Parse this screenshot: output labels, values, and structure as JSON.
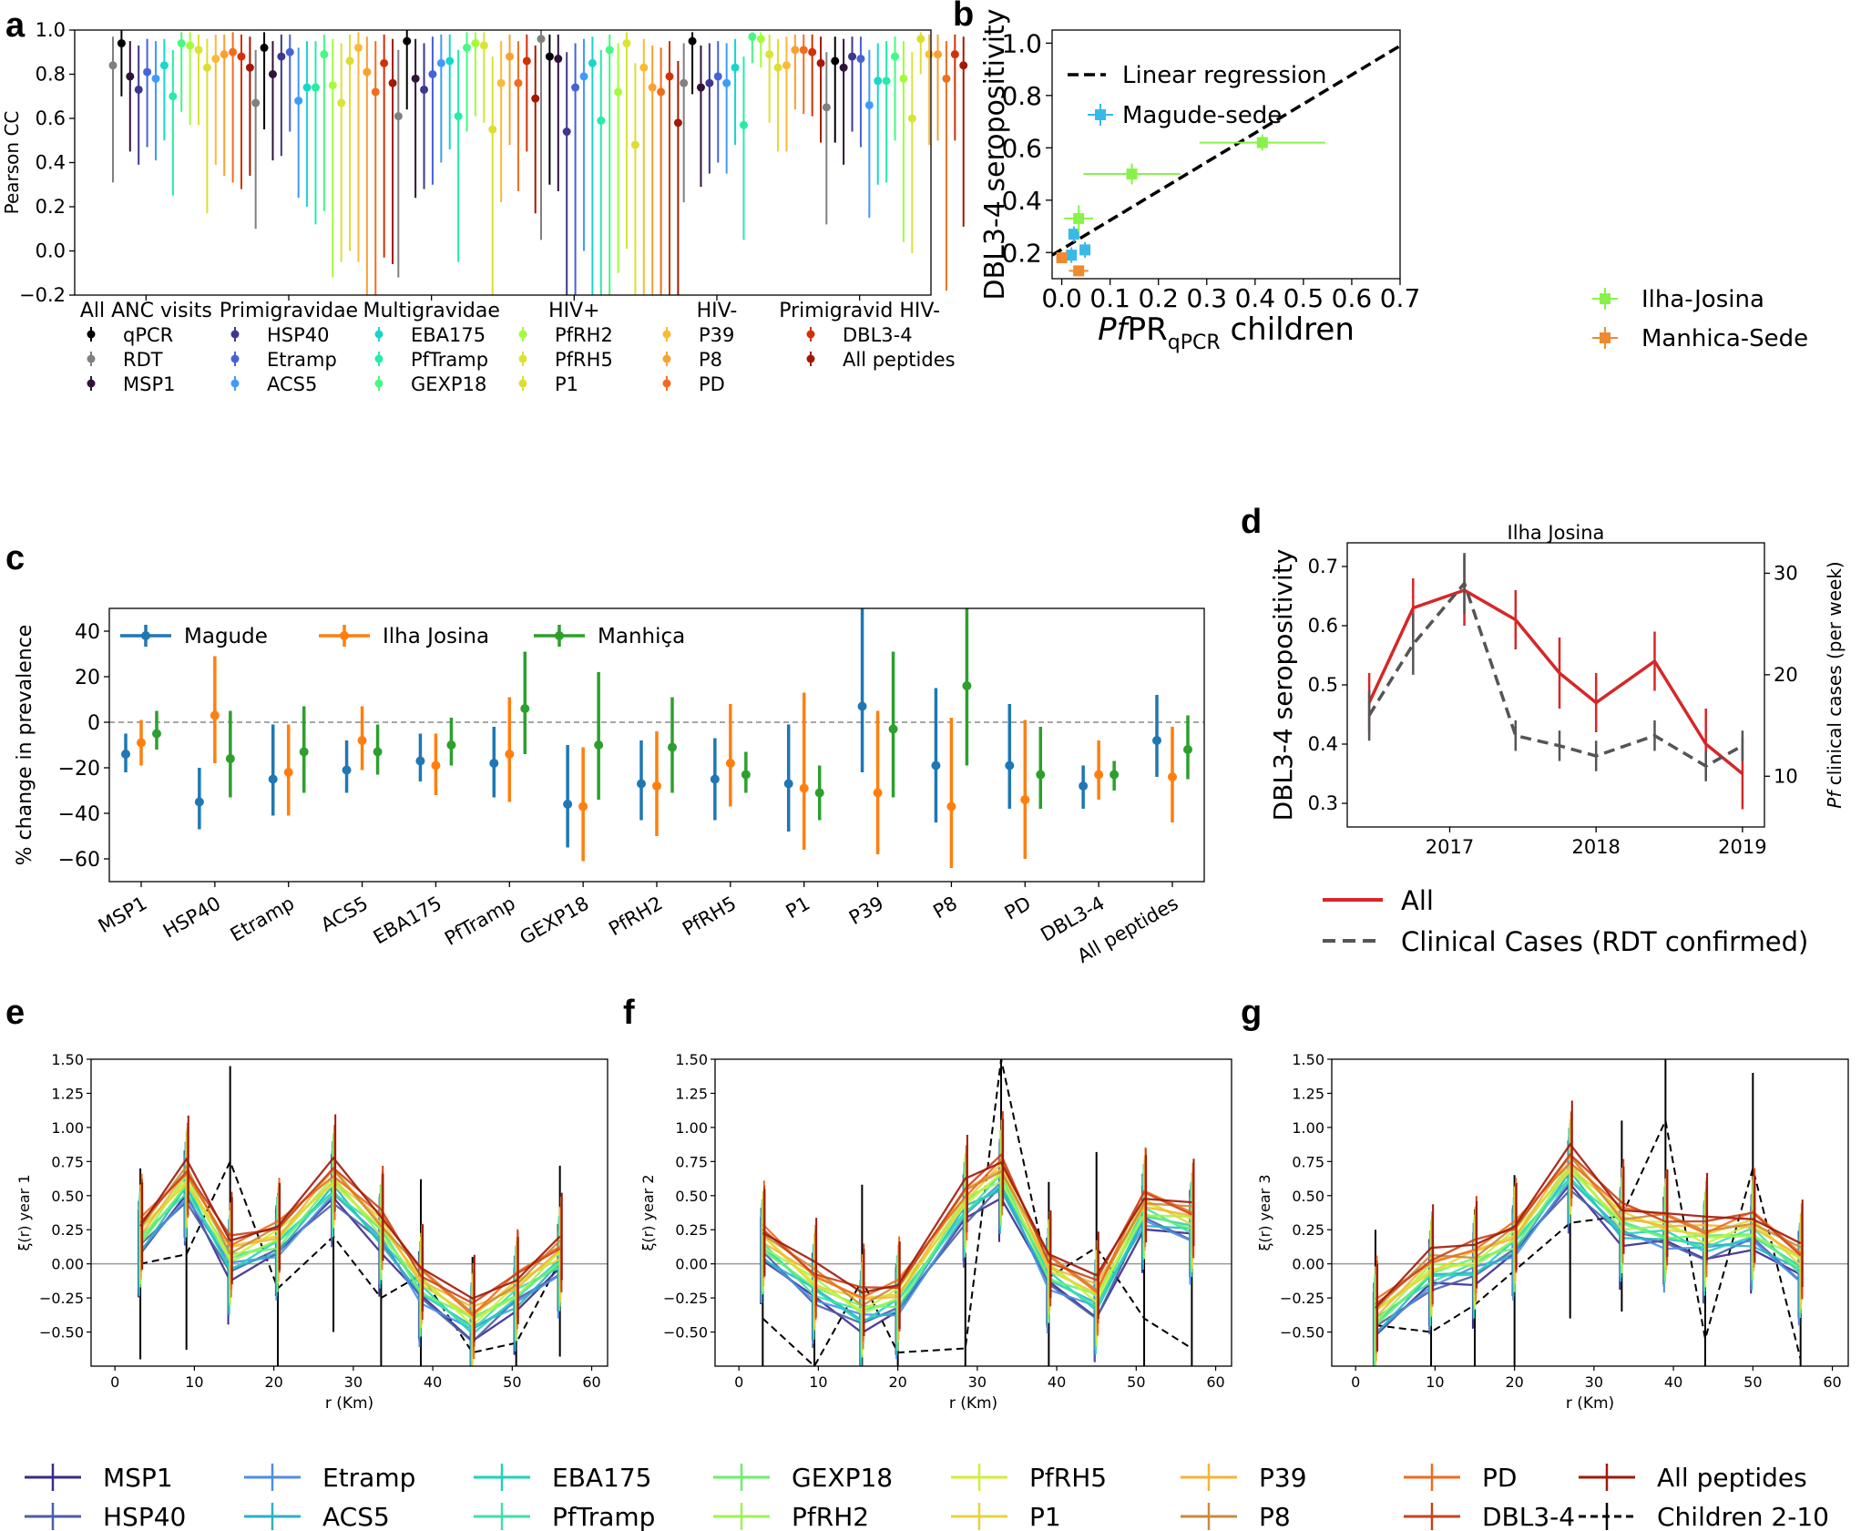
{
  "panel_labels": [
    "a",
    "b",
    "c",
    "d",
    "e",
    "f",
    "g"
  ],
  "colors": {
    "qPCR": "#000000",
    "RDT": "#808080",
    "MSP1": "#30123b",
    "HSP40": "#3e378f",
    "Etramp": "#4662d7",
    "ACS5": "#3e9bfe",
    "EBA175": "#18d6cb",
    "PfTramp": "#25eca7",
    "GEXP18": "#46f884",
    "PfRH2": "#a2fc3c",
    "PfRH5": "#dae337",
    "P1": "#dedd32",
    "P39": "#fbb938",
    "P8": "#f8a130",
    "PD": "#f26c1d",
    "DBL3-4": "#d23105",
    "All peptides": "#a31903",
    "Magude": "#1f77b4",
    "Ilha Josina": "#ff7f0e",
    "Manhica": "#2ca02c",
    "All_d": "#d62728",
    "Clinical_d": "#555555"
  },
  "chart_data": [
    {
      "panel": "a",
      "type": "scatter",
      "ylabel": "Pearson CC",
      "ylim": [
        -0.2,
        1.0
      ],
      "yticks": [
        "−0.2",
        "0.0",
        "0.2",
        "0.4",
        "0.6",
        "0.8",
        "1.0"
      ],
      "categories": [
        "All ANC visits",
        "Primigravidae",
        "Multigravidae",
        "HIV+",
        "HIV-",
        "Primigravid HIV-"
      ],
      "legend": [
        "qPCR",
        "RDT",
        "MSP1",
        "HSP40",
        "Etramp",
        "ACS5",
        "EBA175",
        "PfTramp",
        "GEXP18",
        "PfRH2",
        "PfRH5",
        "P1",
        "P39",
        "P8",
        "PD",
        "DBL3-4",
        "All peptides"
      ],
      "series_order": [
        "RDT",
        "qPCR",
        "MSP1",
        "HSP40",
        "Etramp",
        "ACS5",
        "EBA175",
        "PfTramp",
        "GEXP18",
        "PfRH2",
        "PfRH5",
        "P1",
        "P39",
        "P8",
        "PD",
        "DBL3-4",
        "All peptides"
      ],
      "groups": [
        {
          "values": [
            0.84,
            0.94,
            0.79,
            0.73,
            0.81,
            0.78,
            0.84,
            0.7,
            0.94,
            0.93,
            0.91,
            0.83,
            0.87,
            0.89,
            0.9,
            0.88,
            0.83
          ],
          "lower": [
            0.31,
            0.7,
            0.45,
            0.39,
            0.47,
            0.41,
            0.5,
            0.25,
            0.63,
            0.57,
            0.57,
            0.17,
            0.39,
            0.34,
            0.31,
            0.28,
            0.34
          ],
          "upper": [
            0.97,
            1.0,
            0.95,
            0.93,
            0.96,
            0.95,
            0.96,
            0.91,
            0.99,
            0.99,
            0.98,
            0.96,
            0.98,
            0.98,
            0.99,
            0.98,
            0.97
          ]
        },
        {
          "values": [
            0.67,
            0.92,
            0.8,
            0.88,
            0.9,
            0.68,
            0.74,
            0.74,
            0.89,
            0.75,
            0.67,
            0.86,
            0.92,
            0.81,
            0.72,
            0.85,
            0.76
          ],
          "lower": [
            0.1,
            0.55,
            0.41,
            0.43,
            0.54,
            0.24,
            0.2,
            0.12,
            0.18,
            -0.12,
            -0.05,
            0.0,
            -0.05,
            -0.2,
            -0.2,
            -0.03,
            -0.06
          ],
          "upper": [
            0.91,
            0.99,
            0.95,
            0.98,
            0.98,
            0.92,
            0.95,
            0.95,
            0.98,
            0.96,
            0.94,
            0.98,
            0.99,
            0.97,
            0.95,
            0.98,
            0.96
          ]
        },
        {
          "values": [
            0.61,
            0.95,
            0.78,
            0.73,
            0.8,
            0.85,
            0.86,
            0.61,
            0.92,
            0.94,
            0.93,
            0.55,
            0.76,
            0.88,
            0.76,
            0.86,
            0.69
          ],
          "lower": [
            -0.12,
            0.64,
            0.24,
            0.28,
            0.3,
            0.4,
            0.46,
            -0.05,
            0.54,
            0.61,
            0.58,
            -0.2,
            0.22,
            0.48,
            0.27,
            0.45,
            0.17
          ],
          "upper": [
            0.91,
            1.0,
            0.96,
            0.94,
            0.97,
            0.98,
            0.98,
            0.91,
            0.99,
            0.99,
            0.99,
            0.88,
            0.95,
            0.98,
            0.95,
            0.98,
            0.93
          ]
        },
        {
          "values": [
            0.96,
            0.88,
            0.87,
            0.54,
            0.74,
            0.79,
            0.85,
            0.59,
            0.91,
            0.72,
            0.94,
            0.48,
            0.83,
            0.74,
            0.72,
            0.79,
            0.58
          ],
          "lower": [
            0.05,
            0.3,
            0.27,
            -0.2,
            -0.2,
            0.0,
            -0.2,
            -0.2,
            -0.2,
            -0.1,
            0.01,
            -0.2,
            -0.2,
            -0.2,
            -0.2,
            -0.2,
            -0.2
          ],
          "upper": [
            1.0,
            0.98,
            0.98,
            0.9,
            0.94,
            0.96,
            0.97,
            0.91,
            0.98,
            0.94,
            0.99,
            0.85,
            0.96,
            0.93,
            0.92,
            0.95,
            0.86
          ]
        },
        {
          "values": [
            0.76,
            0.95,
            0.74,
            0.76,
            0.79,
            0.76,
            0.83,
            0.57,
            0.97,
            0.96,
            0.89,
            0.83,
            0.84,
            0.91,
            0.91,
            0.9,
            0.85
          ],
          "lower": [
            0.22,
            0.71,
            0.29,
            0.35,
            0.4,
            0.35,
            0.48,
            0.05,
            0.85,
            0.83,
            0.58,
            0.45,
            0.45,
            0.64,
            0.62,
            0.61,
            0.49
          ],
          "upper": [
            0.94,
            0.99,
            0.93,
            0.94,
            0.95,
            0.94,
            0.96,
            0.88,
            0.99,
            0.99,
            0.98,
            0.96,
            0.97,
            0.98,
            0.98,
            0.98,
            0.97
          ]
        },
        {
          "values": [
            0.65,
            0.86,
            0.83,
            0.88,
            0.87,
            0.66,
            0.77,
            0.77,
            0.88,
            0.78,
            0.6,
            0.96,
            0.89,
            0.89,
            0.78,
            0.89,
            0.84
          ],
          "lower": [
            0.12,
            0.49,
            0.39,
            0.54,
            0.47,
            0.15,
            0.3,
            0.31,
            0.5,
            0.04,
            -0.01,
            0.8,
            0.48,
            0.5,
            -0.18,
            0.5,
            0.11
          ],
          "upper": [
            0.9,
            0.97,
            0.96,
            0.97,
            0.97,
            0.91,
            0.94,
            0.95,
            0.97,
            0.95,
            0.9,
            0.99,
            0.98,
            0.98,
            0.95,
            0.98,
            0.97
          ]
        }
      ]
    },
    {
      "panel": "b",
      "type": "scatter",
      "xlabel_italic": "Pf",
      "xlabel_main": "PR",
      "xlabel_sub": "qPCR",
      "xlabel_rest": " children",
      "ylabel": "DBL3-4 seropositivity",
      "xlim": [
        -0.02,
        0.7
      ],
      "ylim": [
        0.1,
        1.05
      ],
      "xticks": [
        "0.0",
        "0.1",
        "0.2",
        "0.3",
        "0.4",
        "0.5",
        "0.6",
        "0.7"
      ],
      "yticks": [
        "0.2",
        "0.4",
        "0.6",
        "0.8",
        "1.0"
      ],
      "regression": {
        "label": "Linear regression",
        "x": [
          -0.02,
          0.7
        ],
        "y": [
          0.19,
          0.99
        ]
      },
      "series": [
        {
          "name": "Magude-sede",
          "marker": "s",
          "points": [
            {
              "x": 0.025,
              "y": 0.27,
              "xerr": 0.01,
              "yerr": 0.03
            },
            {
              "x": 0.02,
              "y": 0.19,
              "xerr": 0.01,
              "yerr": 0.03
            },
            {
              "x": 0.048,
              "y": 0.21,
              "xerr": 0.01,
              "yerr": 0.03
            }
          ]
        },
        {
          "name": "Ilha-Josina",
          "marker": "s",
          "points": [
            {
              "x": 0.035,
              "y": 0.33,
              "xerr": 0.03,
              "yerr": 0.05
            },
            {
              "x": 0.145,
              "y": 0.5,
              "xerr": 0.1,
              "yerr": 0.04
            },
            {
              "x": 0.415,
              "y": 0.62,
              "xerr": 0.13,
              "yerr": 0.03
            }
          ]
        },
        {
          "name": "Manhica-Sede",
          "marker": "s",
          "points": [
            {
              "x": 0.0,
              "y": 0.18,
              "xerr": 0.005,
              "yerr": 0.02
            },
            {
              "x": 0.035,
              "y": 0.13,
              "xerr": 0.02,
              "yerr": 0.02
            }
          ]
        }
      ]
    },
    {
      "panel": "c",
      "type": "scatter",
      "ylabel": "% change in prevalence",
      "ylim": [
        -70,
        50
      ],
      "yticks": [
        "−60",
        "−40",
        "−20",
        "0",
        "20",
        "40"
      ],
      "categories": [
        "MSP1",
        "HSP40",
        "Etramp",
        "ACS5",
        "EBA175",
        "PfTramp",
        "GEXP18",
        "PfRH2",
        "PfRH5",
        "P1",
        "P39",
        "P8",
        "PD",
        "DBL3-4",
        "All peptides"
      ],
      "series": [
        {
          "name": "Magude",
          "values": [
            -14,
            -35,
            -25,
            -21,
            -17,
            -18,
            -36,
            -27,
            -25,
            -27,
            7,
            -19,
            -19,
            -28,
            -8
          ],
          "lower": [
            -22,
            -47,
            -41,
            -31,
            -26,
            -33,
            -55,
            -43,
            -43,
            -48,
            -22,
            -44,
            -38,
            -38,
            -24
          ],
          "upper": [
            -5,
            -20,
            -1,
            -8,
            -5,
            -2,
            -10,
            -8,
            -7,
            -1,
            50,
            15,
            8,
            -19,
            12
          ]
        },
        {
          "name": "Ilha Josina",
          "values": [
            -9,
            3,
            -22,
            -8,
            -19,
            -14,
            -37,
            -28,
            -18,
            -29,
            -31,
            -37,
            -34,
            -23,
            -24
          ],
          "lower": [
            -19,
            -18,
            -41,
            -21,
            -32,
            -35,
            -61,
            -50,
            -37,
            -56,
            -58,
            -64,
            -60,
            -34,
            -44
          ],
          "upper": [
            1,
            29,
            -1,
            7,
            -5,
            11,
            -11,
            -4,
            8,
            13,
            5,
            2,
            1,
            -8,
            -2
          ]
        },
        {
          "name": "Manhiça",
          "values": [
            -5,
            -16,
            -13,
            -13,
            -10,
            6,
            -10,
            -11,
            -23,
            -31,
            -3,
            16,
            -23,
            -23,
            -12
          ],
          "lower": [
            -12,
            -33,
            -31,
            -23,
            -19,
            -14,
            -34,
            -31,
            -31,
            -43,
            -33,
            -19,
            -38,
            -30,
            -25
          ],
          "upper": [
            5,
            5,
            7,
            -1,
            2,
            31,
            22,
            11,
            -13,
            -19,
            31,
            50,
            -2,
            -17,
            3
          ]
        }
      ]
    },
    {
      "panel": "d",
      "type": "line",
      "title": "Ilha Josina",
      "ylabel": "DBL3-4 seropositivity",
      "ylabel2_italic": "Pf",
      "ylabel2_rest": " clinical cases (per week)",
      "xticks": [
        "2017",
        "2018",
        "2019"
      ],
      "xtick_values": [
        2017,
        2018,
        2019
      ],
      "yticks": [
        "0.3",
        "0.4",
        "0.5",
        "0.6",
        "0.7"
      ],
      "yticks2": [
        "10",
        "20",
        "30"
      ],
      "ylim": [
        0.26,
        0.74
      ],
      "ylim2": [
        5,
        33
      ],
      "xlim": [
        2016.3,
        2019.15
      ],
      "series": [
        {
          "name": "All",
          "x": [
            2016.45,
            2016.75,
            2017.1,
            2017.45,
            2017.75,
            2018.0,
            2018.4,
            2018.75,
            2019.0
          ],
          "y": [
            0.47,
            0.63,
            0.66,
            0.61,
            0.52,
            0.47,
            0.54,
            0.4,
            0.35
          ],
          "err": [
            0.05,
            0.05,
            0.06,
            0.05,
            0.06,
            0.05,
            0.05,
            0.06,
            0.06
          ]
        },
        {
          "name": "Clinical Cases (RDT confirmed)",
          "x": [
            2016.45,
            2016.75,
            2017.1,
            2017.45,
            2017.75,
            2018.0,
            2018.4,
            2018.75,
            2019.0
          ],
          "y": [
            16,
            23,
            29,
            14,
            13,
            12,
            14,
            11,
            13
          ],
          "err": [
            2.5,
            3,
            3,
            1.5,
            1.5,
            1.5,
            1.5,
            1.5,
            1.5
          ]
        }
      ]
    },
    {
      "panel": "e",
      "type": "line",
      "ylabel": "ξ(r) year 1",
      "xlabel": "r (Km)",
      "xlim": [
        -3,
        62
      ],
      "ylim": [
        -0.75,
        1.5
      ],
      "xticks": [
        "0",
        "10",
        "20",
        "30",
        "40",
        "50",
        "60"
      ],
      "yticks": [
        "−0.50",
        "−0.25",
        "0.00",
        "0.25",
        "0.50",
        "0.75",
        "1.00",
        "1.25",
        "1.50"
      ],
      "x": [
        3.2,
        9,
        14.5,
        20.5,
        27.5,
        33.5,
        38.5,
        45,
        50.5,
        56
      ],
      "center": [
        0.2,
        0.6,
        0.05,
        0.18,
        0.6,
        0.25,
        -0.15,
        -0.42,
        -0.2,
        0.05
      ],
      "children": [
        0.0,
        0.07,
        0.75,
        -0.18,
        0.2,
        -0.25,
        -0.08,
        -0.65,
        -0.58,
        0.02
      ]
    },
    {
      "panel": "f",
      "type": "line",
      "ylabel": "ξ(r) year 2",
      "xlabel": "r (Km)",
      "xlim": [
        -3,
        62
      ],
      "ylim": [
        -0.75,
        1.5
      ],
      "xticks": [
        "0",
        "10",
        "20",
        "30",
        "40",
        "50",
        "60"
      ],
      "yticks": [
        "−0.50",
        "−0.25",
        "0.00",
        "0.25",
        "0.50",
        "0.75",
        "1.00",
        "1.25",
        "1.50"
      ],
      "x": [
        3,
        9.5,
        15.5,
        20,
        28.5,
        33,
        39,
        45,
        51,
        57
      ],
      "center": [
        0.15,
        -0.15,
        -0.33,
        -0.25,
        0.45,
        0.65,
        -0.05,
        -0.25,
        0.4,
        0.3
      ],
      "children": [
        -0.4,
        -0.85,
        -0.12,
        -0.65,
        -0.62,
        1.55,
        -0.1,
        0.12,
        -0.4,
        -0.62
      ]
    },
    {
      "panel": "g",
      "type": "line",
      "ylabel": "ξ(r) year 3",
      "xlabel": "r (Km)",
      "xlim": [
        -3,
        62
      ],
      "ylim": [
        -0.75,
        1.5
      ],
      "xticks": [
        "0",
        "10",
        "20",
        "30",
        "40",
        "50",
        "60"
      ],
      "yticks": [
        "−0.50",
        "−0.25",
        "0.00",
        "0.25",
        "0.50",
        "0.75",
        "1.00",
        "1.25",
        "1.50"
      ],
      "x": [
        2.5,
        9.5,
        15,
        20,
        27,
        33.5,
        39,
        44,
        50,
        56
      ],
      "center": [
        -0.4,
        -0.05,
        0.02,
        0.18,
        0.7,
        0.3,
        0.25,
        0.18,
        0.25,
        0.0
      ],
      "children": [
        -0.45,
        -0.5,
        -0.3,
        -0.05,
        0.3,
        0.35,
        1.05,
        -0.55,
        0.7,
        -0.7
      ]
    }
  ],
  "bottom_legend": [
    "MSP1",
    "HSP40",
    "Etramp",
    "ACS5",
    "EBA175",
    "PfTramp",
    "GEXP18",
    "PfRH2",
    "PfRH5",
    "P1",
    "P39",
    "P8",
    "PD",
    "DBL3-4",
    "All peptides",
    "Children 2-10"
  ]
}
